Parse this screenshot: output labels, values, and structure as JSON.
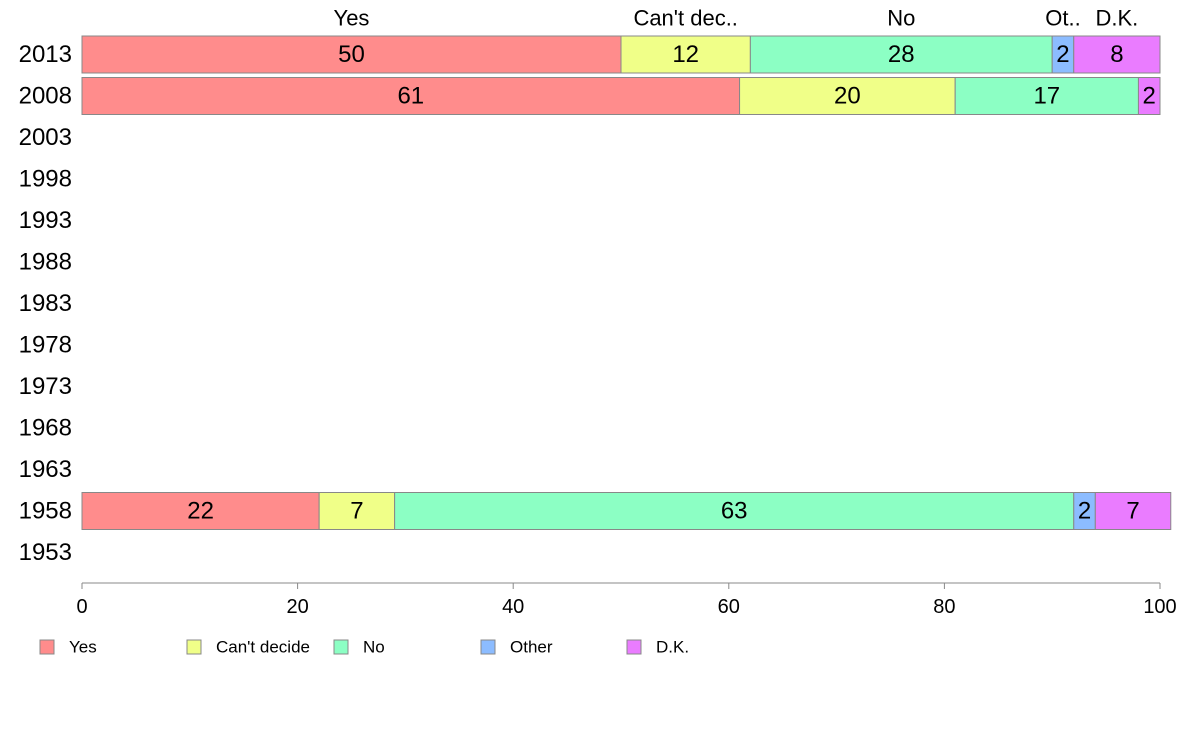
{
  "chart_data": {
    "type": "bar",
    "orientation": "horizontal",
    "stacked": true,
    "categories": [
      "2013",
      "2008",
      "2003",
      "1998",
      "1993",
      "1988",
      "1983",
      "1978",
      "1973",
      "1968",
      "1963",
      "1958",
      "1953"
    ],
    "series": [
      {
        "name": "Yes",
        "top_label": "Yes",
        "color": "#ff8c8c",
        "values": [
          50,
          61,
          null,
          null,
          null,
          null,
          null,
          null,
          null,
          null,
          null,
          22,
          null
        ]
      },
      {
        "name": "Can't decide",
        "top_label": "Can't dec..",
        "color": "#f0ff88",
        "values": [
          12,
          20,
          null,
          null,
          null,
          null,
          null,
          null,
          null,
          null,
          null,
          7,
          null
        ]
      },
      {
        "name": "No",
        "top_label": "No",
        "color": "#8cffc4",
        "values": [
          28,
          17,
          null,
          null,
          null,
          null,
          null,
          null,
          null,
          null,
          null,
          63,
          null
        ]
      },
      {
        "name": "Other",
        "top_label": "Ot..",
        "color": "#8cbcff",
        "values": [
          2,
          0,
          null,
          null,
          null,
          null,
          null,
          null,
          null,
          null,
          null,
          2,
          null
        ]
      },
      {
        "name": "D.K.",
        "top_label": "D.K.",
        "color": "#ea7cff",
        "values": [
          8,
          2,
          null,
          null,
          null,
          null,
          null,
          null,
          null,
          null,
          null,
          7,
          null
        ]
      }
    ],
    "xlim": [
      0,
      100
    ],
    "xticks": [
      0,
      20,
      40,
      60,
      80,
      100
    ],
    "legend_position": "bottom",
    "grid": false
  }
}
